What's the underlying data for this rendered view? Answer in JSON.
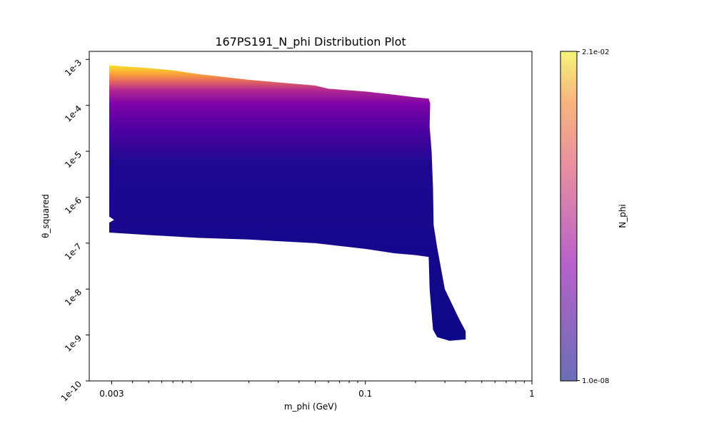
{
  "chart_data": {
    "type": "scatter",
    "title": "167PS191_N_phi Distribution Plot",
    "xlabel": "m_phi (GeV)",
    "ylabel": "θ_squared",
    "x_scale": "log",
    "y_scale": "log",
    "xlim": [
      0.0022,
      1
    ],
    "ylim": [
      1e-10,
      0.0015
    ],
    "x_ticks": [
      {
        "value": 0.003,
        "label": "0.003"
      },
      {
        "value": 0.1,
        "label": "0.1"
      },
      {
        "value": 1,
        "label": "1"
      }
    ],
    "y_ticks": [
      {
        "value": 1e-10,
        "label": "1e-10"
      },
      {
        "value": 1e-09,
        "label": "1e-9"
      },
      {
        "value": 1e-08,
        "label": "1e-8"
      },
      {
        "value": 1e-07,
        "label": "1e-7"
      },
      {
        "value": 1e-06,
        "label": "1e-6"
      },
      {
        "value": 1e-05,
        "label": "1e-5"
      },
      {
        "value": 0.0001,
        "label": "1e-4"
      },
      {
        "value": 0.001,
        "label": "1e-3"
      }
    ],
    "region_boundary": [
      [
        0.0029,
        0.00075
      ],
      [
        0.0033,
        0.00072
      ],
      [
        0.005,
        0.00065
      ],
      [
        0.007,
        0.00058
      ],
      [
        0.01,
        0.00048
      ],
      [
        0.02,
        0.00036
      ],
      [
        0.05,
        0.00027
      ],
      [
        0.06,
        0.00023
      ],
      [
        0.1,
        0.0002
      ],
      [
        0.15,
        0.00017
      ],
      [
        0.2,
        0.00015
      ],
      [
        0.24,
        0.00014
      ],
      [
        0.245,
        0.00011
      ],
      [
        0.243,
        3.5e-05
      ],
      [
        0.25,
        1e-05
      ],
      [
        0.255,
        1.5e-06
      ],
      [
        0.257,
        2.5e-07
      ],
      [
        0.27,
        8e-08
      ],
      [
        0.3,
        1e-08
      ],
      [
        0.36,
        2.5e-09
      ],
      [
        0.4,
        1.2e-09
      ],
      [
        0.4,
        8e-10
      ],
      [
        0.32,
        7.5e-10
      ],
      [
        0.27,
        9e-10
      ],
      [
        0.255,
        1.3e-09
      ],
      [
        0.25,
        3e-09
      ],
      [
        0.243,
        1e-08
      ],
      [
        0.24,
        5e-08
      ],
      [
        0.2,
        5.5e-08
      ],
      [
        0.15,
        6e-08
      ],
      [
        0.1,
        7.5e-08
      ],
      [
        0.05,
        1e-07
      ],
      [
        0.02,
        1.2e-07
      ],
      [
        0.01,
        1.3e-07
      ],
      [
        0.005,
        1.5e-07
      ],
      [
        0.0029,
        1.7e-07
      ],
      [
        0.0029,
        2.8e-07
      ],
      [
        0.0031,
        3.2e-07
      ],
      [
        0.0029,
        3.8e-07
      ]
    ],
    "color_variable": "N_phi",
    "colormap": "plasma",
    "colorbar": {
      "label": "N_phi",
      "min_label": "1.0e-08",
      "max_label": "2.1e-02",
      "stops": [
        "#0d0887",
        "#6a00a8",
        "#b12a90",
        "#e16462",
        "#fca636",
        "#f0f921"
      ]
    },
    "grid": false
  }
}
